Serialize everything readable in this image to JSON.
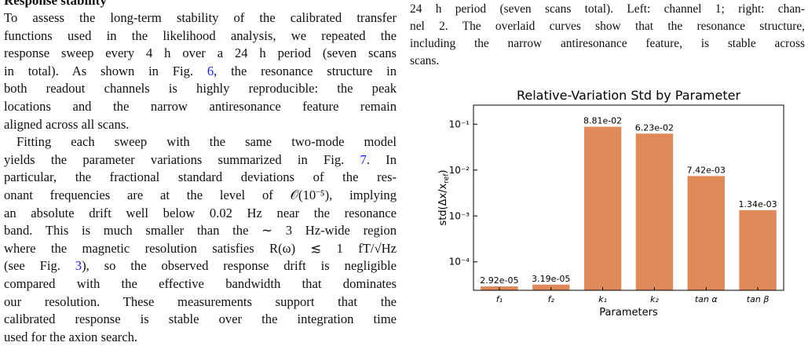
{
  "heading": "Response stability",
  "left": {
    "paragraphs": [
      [
        [
          "To assess the long-term stability of the calibrated transfer"
        ],
        [
          "functions used in the likelihood analysis, we repeated the"
        ],
        [
          "response sweep every 4 h over a 24 h period (seven scans"
        ],
        [
          "in total). As shown in Fig. ",
          {
            "ref": "6"
          },
          ", the resonance structure in"
        ],
        [
          "both readout channels is highly reproducible: the peak"
        ],
        [
          "locations and the narrow antiresonance feature remain"
        ],
        [
          "aligned across all scans."
        ]
      ],
      [
        [
          "Fitting each sweep with the same two-mode model"
        ],
        [
          "yields the parameter variations summarized in Fig. ",
          {
            "ref": "7"
          },
          ". In"
        ],
        [
          "particular, the fractional standard deviations of the res-"
        ],
        [
          "onant frequencies are at the level of 𝒪(10⁻⁵), implying"
        ],
        [
          "an absolute drift well below 0.02 Hz near the resonance"
        ],
        [
          "band. This is much smaller than the ∼ 3 Hz-wide region"
        ],
        [
          "where the magnetic resolution satisfies R(ω) ≲ 1 fT/√Hz"
        ],
        [
          "(see Fig. ",
          {
            "ref": "3"
          },
          "), so the observed response drift is negligible"
        ],
        [
          "compared with the effective bandwidth that dominates"
        ],
        [
          "our resolution. These measurements support that the"
        ],
        [
          "calibrated response is stable over the integration time"
        ],
        [
          "used for the axion search."
        ]
      ]
    ]
  },
  "right": {
    "caption": [
      "24 h period (seven scans total). Left: channel 1; right: chan-",
      "nel 2. The overlaid curves show that the resonance structure,",
      "including the narrow antiresonance feature, is stable across",
      "scans."
    ]
  },
  "chart_data": {
    "type": "bar",
    "title": "Relative-Variation Std by Parameter",
    "xlabel": "Parameters",
    "ylabel": {
      "main": "std(Δx/x",
      "sub": "ref",
      "end": ")"
    },
    "categories": [
      "f₁",
      "f₂",
      "k₁",
      "k₂",
      "tan α",
      "tan β"
    ],
    "values": [
      2.92e-05,
      3.19e-05,
      0.0881,
      0.0623,
      0.00742,
      0.00134
    ],
    "value_labels": [
      "2.92e-05",
      "3.19e-05",
      "8.81e-02",
      "6.23e-02",
      "7.42e-03",
      "1.34e-03"
    ],
    "color": "#e08a5a",
    "yscale": "log",
    "ylim": [
      2.4e-05,
      0.26
    ],
    "yticks": [
      {
        "value": 0.0001,
        "label": "10⁻⁴"
      },
      {
        "value": 0.001,
        "label": "10⁻³"
      },
      {
        "value": 0.01,
        "label": "10⁻²"
      },
      {
        "value": 0.1,
        "label": "10⁻¹"
      }
    ]
  }
}
